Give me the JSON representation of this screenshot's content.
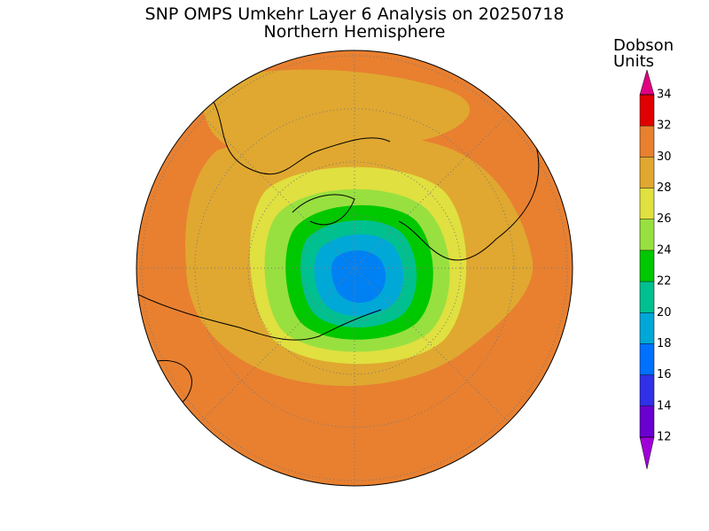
{
  "header": {
    "title": "SNP OMPS Umkehr Layer 6 Analysis on 20250718",
    "subtitle": "Northern Hemisphere"
  },
  "colorbar": {
    "label_lines": [
      "Dobson",
      "Units"
    ],
    "ticks": [
      12,
      14,
      16,
      18,
      20,
      22,
      24,
      26,
      28,
      30,
      32,
      34
    ],
    "colors": [
      "#a000d8",
      "#6a00d0",
      "#3030e8",
      "#0070ff",
      "#00a8d8",
      "#00c090",
      "#00c800",
      "#98e040",
      "#e0e040",
      "#e0a830",
      "#e88030",
      "#e00000",
      "#e00080"
    ]
  }
}
